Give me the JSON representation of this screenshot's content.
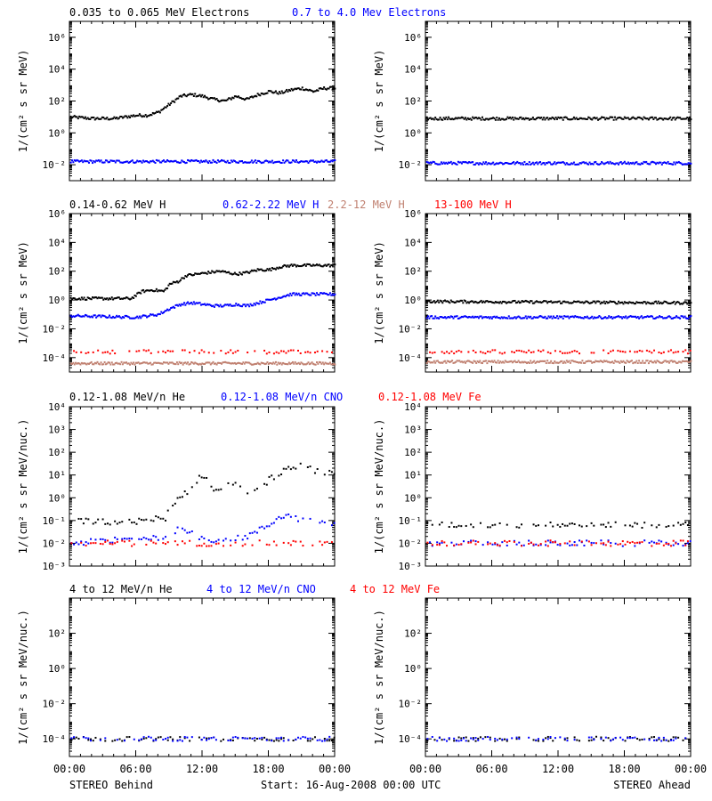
{
  "rows": [
    {
      "headers": [
        {
          "text": "0.035 to 0.065 MeV Electrons",
          "color": "#000000"
        },
        {
          "text": "0.7 to 4.0 Mev Electrons",
          "color": "#0000ff"
        }
      ],
      "ylabel": "1/(cm² s sr MeV)",
      "ylim": [
        -3,
        7
      ],
      "yticks": [
        {
          "value": 6,
          "label": "10⁶"
        },
        {
          "value": 4,
          "label": "10⁴"
        },
        {
          "value": 2,
          "label": "10²"
        },
        {
          "value": 0,
          "label": "10⁰"
        },
        {
          "value": -2,
          "label": "10⁻²"
        }
      ]
    },
    {
      "headers": [
        {
          "text": "0.14-0.62 MeV H",
          "color": "#000000"
        },
        {
          "text": "0.62-2.22 MeV H",
          "color": "#0000ff"
        },
        {
          "text": "2.2-12 MeV H",
          "color": "#c08070"
        },
        {
          "text": "13-100 MeV H",
          "color": "#ff0000"
        }
      ],
      "ylabel": "1/(cm² s sr MeV)",
      "ylim": [
        -5,
        6
      ],
      "yticks": [
        {
          "value": 6,
          "label": "10⁶"
        },
        {
          "value": 4,
          "label": "10⁴"
        },
        {
          "value": 2,
          "label": "10²"
        },
        {
          "value": 0,
          "label": "10⁰"
        },
        {
          "value": -2,
          "label": "10⁻²"
        },
        {
          "value": -4,
          "label": "10⁻⁴"
        }
      ]
    },
    {
      "headers": [
        {
          "text": "0.12-1.08 MeV/n He",
          "color": "#000000"
        },
        {
          "text": "0.12-1.08 MeV/n CNO",
          "color": "#0000ff"
        },
        {
          "text": "0.12-1.08 MeV Fe",
          "color": "#ff0000"
        }
      ],
      "ylabel": "1/(cm² s sr MeV/nuc.)",
      "ylim": [
        -3,
        4
      ],
      "yticks": [
        {
          "value": 4,
          "label": "10⁴"
        },
        {
          "value": 3,
          "label": "10³"
        },
        {
          "value": 2,
          "label": "10²"
        },
        {
          "value": 1,
          "label": "10¹"
        },
        {
          "value": 0,
          "label": "10⁰"
        },
        {
          "value": -1,
          "label": "10⁻¹"
        },
        {
          "value": -2,
          "label": "10⁻²"
        },
        {
          "value": -3,
          "label": "10⁻³"
        }
      ]
    },
    {
      "headers": [
        {
          "text": "4 to 12 MeV/n He",
          "color": "#000000"
        },
        {
          "text": "4 to 12 MeV/n CNO",
          "color": "#0000ff"
        },
        {
          "text": "4 to 12 MeV Fe",
          "color": "#ff0000"
        }
      ],
      "ylabel": "1/(cm² s sr MeV/nuc.)",
      "ylim": [
        -5,
        4
      ],
      "yticks": [
        {
          "value": 2,
          "label": "10²"
        },
        {
          "value": 0,
          "label": "10⁰"
        },
        {
          "value": -2,
          "label": "10⁻²"
        },
        {
          "value": -4,
          "label": "10⁻⁴"
        }
      ]
    }
  ],
  "xticks": [
    "00:00",
    "06:00",
    "12:00",
    "18:00",
    "00:00"
  ],
  "footer": {
    "left": "STEREO Behind",
    "center": "Start: 16-Aug-2008 00:00 UTC",
    "right": "STEREO Ahead"
  },
  "chart_data": {
    "type": "scatter",
    "x_unit": "hours since 16-Aug-2008 00:00 UTC",
    "y_scale": "log10",
    "xlim": [
      0,
      24
    ],
    "panels": [
      {
        "spacecraft": "STEREO Behind",
        "row": 0,
        "series": [
          {
            "name": "0.035 to 0.065 MeV Electrons",
            "color": "#000000",
            "style": "dense",
            "points": [
              [
                0,
                1.0
              ],
              [
                2,
                0.9
              ],
              [
                4,
                0.9
              ],
              [
                6,
                1.1
              ],
              [
                7,
                1.1
              ],
              [
                8,
                1.3
              ],
              [
                9,
                1.8
              ],
              [
                10,
                2.3
              ],
              [
                11,
                2.4
              ],
              [
                12,
                2.3
              ],
              [
                13,
                2.1
              ],
              [
                14,
                2.0
              ],
              [
                15,
                2.3
              ],
              [
                16,
                2.1
              ],
              [
                17,
                2.4
              ],
              [
                18,
                2.6
              ],
              [
                19,
                2.5
              ],
              [
                20,
                2.7
              ],
              [
                21,
                2.8
              ],
              [
                22,
                2.6
              ],
              [
                23,
                2.8
              ],
              [
                24,
                2.8
              ]
            ]
          },
          {
            "name": "0.7 to 4.0 Mev Electrons",
            "color": "#0000ff",
            "style": "dense",
            "points": [
              [
                0,
                -1.8
              ],
              [
                24,
                -1.8
              ]
            ]
          }
        ]
      },
      {
        "spacecraft": "STEREO Ahead",
        "row": 0,
        "series": [
          {
            "name": "0.035 to 0.065 MeV Electrons",
            "color": "#000000",
            "style": "dense",
            "points": [
              [
                0,
                0.9
              ],
              [
                24,
                0.9
              ]
            ]
          },
          {
            "name": "0.7 to 4.0 Mev Electrons",
            "color": "#0000ff",
            "style": "dense",
            "points": [
              [
                0,
                -1.9
              ],
              [
                24,
                -1.9
              ]
            ]
          }
        ]
      },
      {
        "spacecraft": "STEREO Behind",
        "row": 1,
        "series": [
          {
            "name": "0.14-0.62 MeV H",
            "color": "#000000",
            "style": "dense",
            "points": [
              [
                0,
                0.1
              ],
              [
                3,
                0.1
              ],
              [
                5.5,
                0.1
              ],
              [
                6.5,
                0.6
              ],
              [
                7.5,
                0.7
              ],
              [
                8.5,
                0.6
              ],
              [
                9,
                1.1
              ],
              [
                9.8,
                1.3
              ],
              [
                10.5,
                1.7
              ],
              [
                11.5,
                1.8
              ],
              [
                12.5,
                1.9
              ],
              [
                13.5,
                2.0
              ],
              [
                15,
                1.8
              ],
              [
                16,
                1.9
              ],
              [
                17,
                2.1
              ],
              [
                18,
                2.1
              ],
              [
                19,
                2.3
              ],
              [
                20,
                2.4
              ],
              [
                24,
                2.4
              ]
            ]
          },
          {
            "name": "0.62-2.22 MeV H",
            "color": "#0000ff",
            "style": "dense",
            "points": [
              [
                0,
                -1.1
              ],
              [
                6,
                -1.2
              ],
              [
                8,
                -1.0
              ],
              [
                9,
                -0.6
              ],
              [
                10,
                -0.3
              ],
              [
                11,
                -0.2
              ],
              [
                12,
                -0.3
              ],
              [
                13,
                -0.4
              ],
              [
                14,
                -0.4
              ],
              [
                15,
                -0.3
              ],
              [
                16,
                -0.4
              ],
              [
                17,
                -0.2
              ],
              [
                18,
                0.0
              ],
              [
                19,
                0.2
              ],
              [
                20,
                0.4
              ],
              [
                24,
                0.4
              ]
            ]
          },
          {
            "name": "2.2-12 MeV H",
            "color": "#c08070",
            "style": "dense",
            "points": [
              [
                0,
                -4.4
              ],
              [
                24,
                -4.4
              ]
            ]
          },
          {
            "name": "13-100 MeV H",
            "color": "#ff0000",
            "style": "sparse",
            "points": [
              [
                0,
                -3.6
              ],
              [
                24,
                -3.6
              ]
            ]
          }
        ]
      },
      {
        "spacecraft": "STEREO Ahead",
        "row": 1,
        "series": [
          {
            "name": "0.14-0.62 MeV H",
            "color": "#000000",
            "style": "dense",
            "points": [
              [
                0,
                -0.1
              ],
              [
                24,
                -0.2
              ]
            ]
          },
          {
            "name": "0.62-2.22 MeV H",
            "color": "#0000ff",
            "style": "dense",
            "points": [
              [
                0,
                -1.2
              ],
              [
                24,
                -1.2
              ]
            ]
          },
          {
            "name": "2.2-12 MeV H",
            "color": "#c08070",
            "style": "dense",
            "points": [
              [
                0,
                -4.3
              ],
              [
                24,
                -4.3
              ]
            ]
          },
          {
            "name": "13-100 MeV H",
            "color": "#ff0000",
            "style": "sparse",
            "points": [
              [
                0,
                -3.6
              ],
              [
                24,
                -3.6
              ]
            ]
          }
        ]
      },
      {
        "spacecraft": "STEREO Behind",
        "row": 2,
        "series": [
          {
            "name": "0.12-1.08 MeV/n He",
            "color": "#000000",
            "style": "sparse",
            "points": [
              [
                0,
                -1.0
              ],
              [
                5,
                -1.1
              ],
              [
                6.5,
                -1.0
              ],
              [
                7.5,
                -0.9
              ],
              [
                8.5,
                -1.0
              ],
              [
                9,
                -0.5
              ],
              [
                10,
                0.1
              ],
              [
                11,
                0.4
              ],
              [
                11.8,
                1.0
              ],
              [
                12.5,
                0.8
              ],
              [
                13,
                0.3
              ],
              [
                14,
                0.6
              ],
              [
                15,
                0.7
              ],
              [
                16,
                0.1
              ],
              [
                17,
                0.3
              ],
              [
                18,
                0.8
              ],
              [
                19,
                1.1
              ],
              [
                20,
                1.3
              ],
              [
                21,
                1.4
              ],
              [
                22,
                1.2
              ],
              [
                23,
                1.1
              ],
              [
                24,
                1.1
              ]
            ]
          },
          {
            "name": "0.12-1.08 MeV/n CNO",
            "color": "#0000ff",
            "style": "sparse",
            "points": [
              [
                0,
                -2.0
              ],
              [
                9,
                -1.7
              ],
              [
                10,
                -1.3
              ],
              [
                11,
                -1.5
              ],
              [
                12,
                -1.8
              ],
              [
                14,
                -1.9
              ],
              [
                16,
                -1.7
              ],
              [
                18,
                -1.2
              ],
              [
                19,
                -0.8
              ],
              [
                20,
                -0.8
              ],
              [
                21,
                -1.0
              ],
              [
                22,
                -0.9
              ],
              [
                24,
                -1.2
              ]
            ]
          },
          {
            "name": "0.12-1.08 MeV Fe",
            "color": "#ff0000",
            "style": "sparse",
            "points": [
              [
                0,
                -2.0
              ],
              [
                24,
                -2.0
              ]
            ]
          }
        ]
      },
      {
        "spacecraft": "STEREO Ahead",
        "row": 2,
        "series": [
          {
            "name": "0.12-1.08 MeV/n He",
            "color": "#000000",
            "style": "sparse",
            "points": [
              [
                0,
                -1.2
              ],
              [
                24,
                -1.2
              ]
            ]
          },
          {
            "name": "0.12-1.08 MeV/n CNO",
            "color": "#0000ff",
            "style": "sparse",
            "points": [
              [
                0,
                -2.0
              ],
              [
                24,
                -2.0
              ]
            ]
          },
          {
            "name": "0.12-1.08 MeV Fe",
            "color": "#ff0000",
            "style": "sparse",
            "points": [
              [
                0,
                -2.0
              ],
              [
                24,
                -2.0
              ]
            ]
          }
        ]
      },
      {
        "spacecraft": "STEREO Behind",
        "row": 3,
        "series": [
          {
            "name": "4 to 12 MeV/n He",
            "color": "#000000",
            "style": "sparse",
            "points": [
              [
                0,
                -4.0
              ],
              [
                24,
                -4.0
              ]
            ]
          },
          {
            "name": "4 to 12 MeV/n CNO",
            "color": "#0000ff",
            "style": "sparse",
            "points": [
              [
                0,
                -4.0
              ],
              [
                24,
                -4.0
              ]
            ]
          }
        ]
      },
      {
        "spacecraft": "STEREO Ahead",
        "row": 3,
        "series": [
          {
            "name": "4 to 12 MeV/n He",
            "color": "#000000",
            "style": "sparse",
            "points": [
              [
                0,
                -4.0
              ],
              [
                24,
                -4.0
              ]
            ]
          },
          {
            "name": "4 to 12 MeV/n CNO",
            "color": "#0000ff",
            "style": "sparse",
            "points": [
              [
                0,
                -4.0
              ],
              [
                24,
                -4.0
              ]
            ]
          }
        ]
      }
    ]
  }
}
